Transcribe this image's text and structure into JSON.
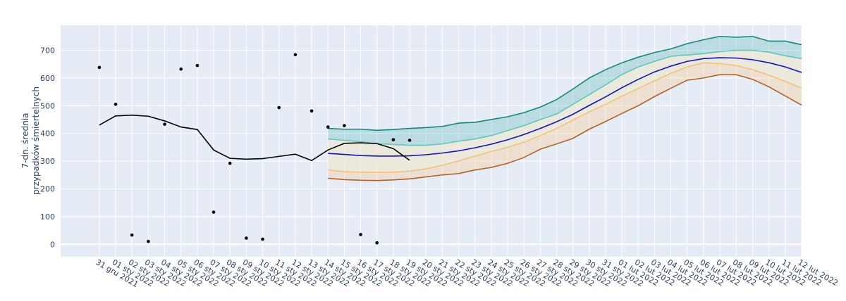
{
  "chart_data": {
    "type": "line",
    "y_label": [
      "7-dn. średnia",
      "przypadków śmiertelnych"
    ],
    "categories": [
      "31 gru 2021",
      "01 sty 2022",
      "02 sty 2022",
      "03 sty 2022",
      "04 sty 2022",
      "05 sty 2022",
      "06 sty 2022",
      "07 sty 2022",
      "08 sty 2022",
      "09 sty 2022",
      "10 sty 2022",
      "11 sty 2022",
      "12 sty 2022",
      "13 sty 2022",
      "14 sty 2022",
      "15 sty 2022",
      "16 sty 2022",
      "17 sty 2022",
      "18 sty 2022",
      "19 sty 2022",
      "20 sty 2022",
      "21 sty 2022",
      "22 sty 2022",
      "23 sty 2022",
      "24 sty 2022",
      "25 sty 2022",
      "26 sty 2022",
      "27 sty 2022",
      "28 sty 2022",
      "29 sty 2022",
      "30 sty 2022",
      "31 sty 2022",
      "01 lut 2022",
      "02 lut 2022",
      "03 lut 2022",
      "04 lut 2022",
      "05 lut 2022",
      "06 lut 2022",
      "07 lut 2022",
      "08 lut 2022",
      "09 lut 2022",
      "10 lut 2022",
      "11 lut 2022",
      "12 lut 2022"
    ],
    "ylim": [
      -45,
      790
    ],
    "yticks": [
      0,
      100,
      200,
      300,
      400,
      500,
      600,
      700
    ],
    "grid": true,
    "series": [
      {
        "color": "#16877a",
        "fill": "rgba(30,160,150,0.22)",
        "mode": "lines",
        "values": [
          null,
          null,
          null,
          null,
          null,
          null,
          null,
          null,
          null,
          null,
          null,
          null,
          null,
          null,
          418,
          415,
          415,
          411,
          414,
          418,
          421,
          425,
          437,
          440,
          450,
          460,
          475,
          495,
          522,
          560,
          600,
          630,
          655,
          675,
          692,
          705,
          724,
          738,
          750,
          747,
          750,
          733,
          733,
          720
        ]
      },
      {
        "color": "#5fc7be",
        "fill": "rgba(236,232,210,0.75)",
        "mode": "lines",
        "values": [
          null,
          null,
          null,
          null,
          null,
          null,
          null,
          null,
          null,
          null,
          null,
          null,
          null,
          null,
          380,
          375,
          370,
          363,
          360,
          357,
          357,
          362,
          372,
          380,
          392,
          410,
          428,
          450,
          470,
          505,
          540,
          575,
          612,
          640,
          660,
          678,
          683,
          688,
          695,
          700,
          700,
          693,
          680,
          670
        ]
      },
      {
        "color": "#f2c27a",
        "fill": "rgba(250,200,140,0.35)",
        "mode": "lines",
        "values": [
          null,
          null,
          null,
          null,
          null,
          null,
          null,
          null,
          null,
          null,
          null,
          null,
          null,
          null,
          268,
          262,
          260,
          260,
          260,
          264,
          272,
          285,
          300,
          318,
          335,
          350,
          368,
          392,
          418,
          448,
          478,
          505,
          535,
          562,
          590,
          617,
          640,
          655,
          652,
          645,
          630,
          610,
          588,
          563
        ]
      },
      {
        "color": "#b0622a",
        "mode": "lines",
        "values": [
          null,
          null,
          null,
          null,
          null,
          null,
          null,
          null,
          null,
          null,
          null,
          null,
          null,
          null,
          238,
          233,
          231,
          230,
          232,
          236,
          243,
          250,
          255,
          268,
          277,
          292,
          313,
          343,
          362,
          382,
          415,
          443,
          472,
          500,
          533,
          563,
          592,
          600,
          612,
          612,
          595,
          568,
          535,
          502
        ]
      },
      {
        "color": "#1010d0",
        "mode": "lines",
        "values": [
          null,
          null,
          null,
          null,
          null,
          null,
          null,
          null,
          null,
          null,
          null,
          null,
          null,
          null,
          328,
          324,
          320,
          318,
          318,
          319,
          323,
          329,
          337,
          348,
          361,
          377,
          396,
          418,
          442,
          469,
          501,
          532,
          565,
          595,
          622,
          643,
          660,
          670,
          673,
          672,
          666,
          655,
          640,
          620
        ]
      },
      {
        "color": "#000000",
        "mode": "lines",
        "values": [
          430,
          463,
          466,
          462,
          445,
          423,
          414,
          340,
          310,
          307,
          309,
          317,
          325,
          302,
          340,
          364,
          366,
          363,
          345,
          303,
          null,
          null,
          null,
          null,
          null,
          null,
          null,
          null,
          null,
          null,
          null,
          null,
          null,
          null,
          null,
          null,
          null,
          null,
          null,
          null,
          null,
          null,
          null,
          null
        ]
      },
      {
        "color": "#000000",
        "mode": "markers",
        "values": [
          638,
          505,
          33,
          10,
          433,
          632,
          645,
          116,
          292,
          22,
          18,
          493,
          684,
          481,
          423,
          428,
          35,
          5,
          377,
          375,
          null,
          null,
          null,
          null,
          null,
          null,
          null,
          null,
          null,
          null,
          null,
          null,
          null,
          null,
          null,
          null,
          null,
          null,
          null,
          null,
          null,
          null,
          null,
          null
        ]
      }
    ]
  }
}
